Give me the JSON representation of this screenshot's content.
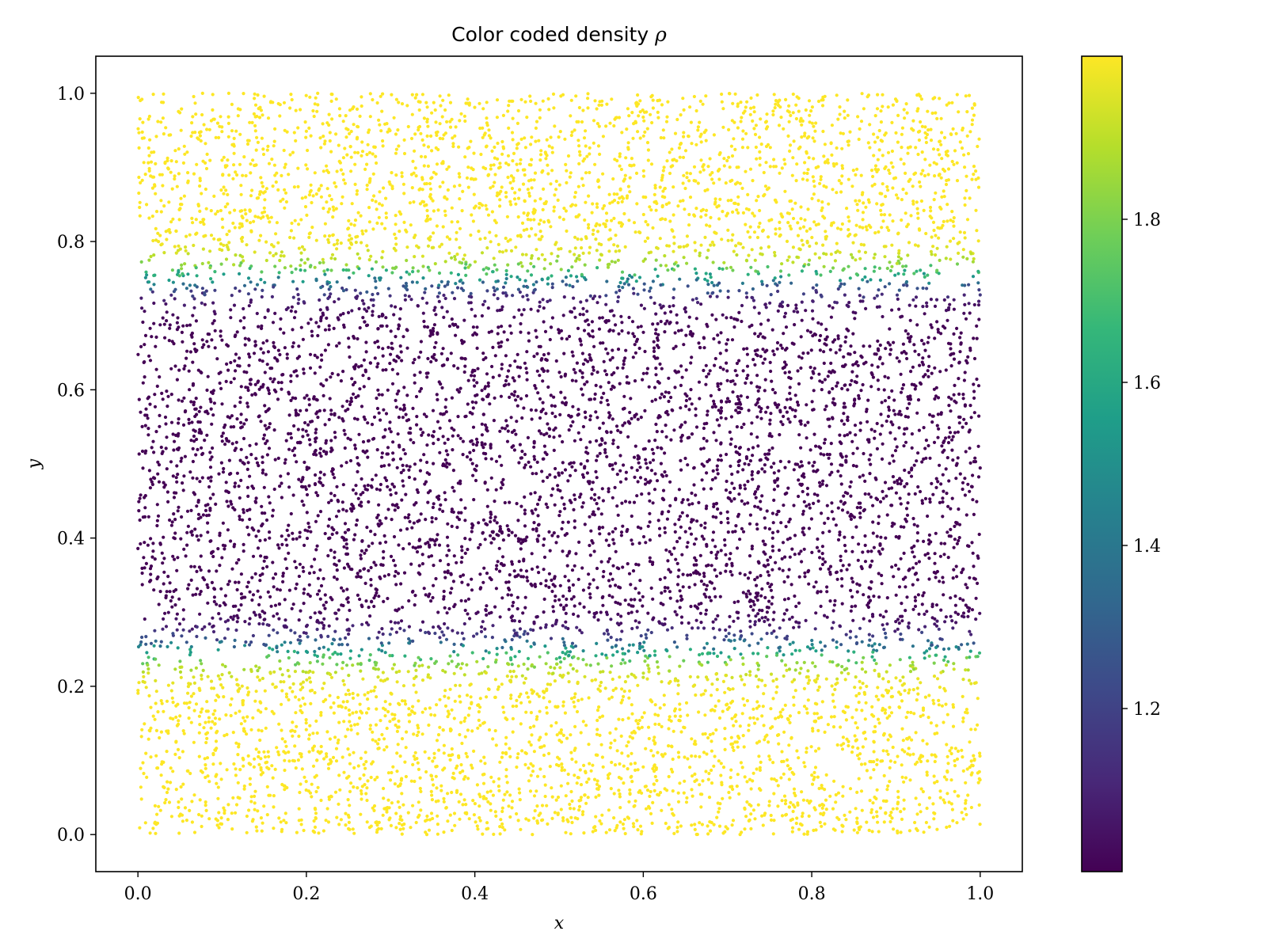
{
  "chart_data": {
    "type": "scatter",
    "title_text": "Color coded density ",
    "title_symbol": "ρ",
    "xlabel": "x",
    "ylabel": "y",
    "xlim": [
      -0.05,
      1.05
    ],
    "ylim": [
      -0.05,
      1.05
    ],
    "xticks": [
      0.0,
      0.2,
      0.4,
      0.6,
      0.8,
      1.0
    ],
    "xtick_labels": [
      "0.0",
      "0.2",
      "0.4",
      "0.6",
      "0.8",
      "1.0"
    ],
    "yticks": [
      0.0,
      0.2,
      0.4,
      0.6,
      0.8,
      1.0
    ],
    "ytick_labels": [
      "0.0",
      "0.2",
      "0.4",
      "0.6",
      "0.8",
      "1.0"
    ],
    "grid": false,
    "colormap": "viridis",
    "colorbar": {
      "vmin": 1.0,
      "vmax": 2.0,
      "ticks": [
        1.2,
        1.4,
        1.6,
        1.8
      ],
      "tick_labels": [
        "1.2",
        "1.4",
        "1.6",
        "1.8"
      ],
      "stops": [
        "#440154",
        "#482878",
        "#3e4989",
        "#31688e",
        "#26828e",
        "#1f9e89",
        "#35b779",
        "#6ece58",
        "#b5de2b",
        "#fde725"
      ]
    },
    "density_profile": {
      "low_value": 1.0,
      "high_value": 2.0,
      "low_band_y": [
        0.25,
        0.75
      ],
      "transition_width": 0.05
    },
    "points_sample": [
      {
        "x": 0.0,
        "y": 0.01
      },
      {
        "x": 0.05,
        "y": 0.12
      },
      {
        "x": 0.1,
        "y": 0.19
      },
      {
        "x": 0.2,
        "y": 0.24
      },
      {
        "x": 0.3,
        "y": 0.26
      },
      {
        "x": 0.4,
        "y": 0.45
      },
      {
        "x": 0.5,
        "y": 0.55
      },
      {
        "x": 0.6,
        "y": 0.73
      },
      {
        "x": 0.7,
        "y": 0.76
      },
      {
        "x": 0.8,
        "y": 0.82
      },
      {
        "x": 0.9,
        "y": 0.9
      },
      {
        "x": 1.0,
        "y": 0.99
      }
    ],
    "point_count": 10000
  }
}
